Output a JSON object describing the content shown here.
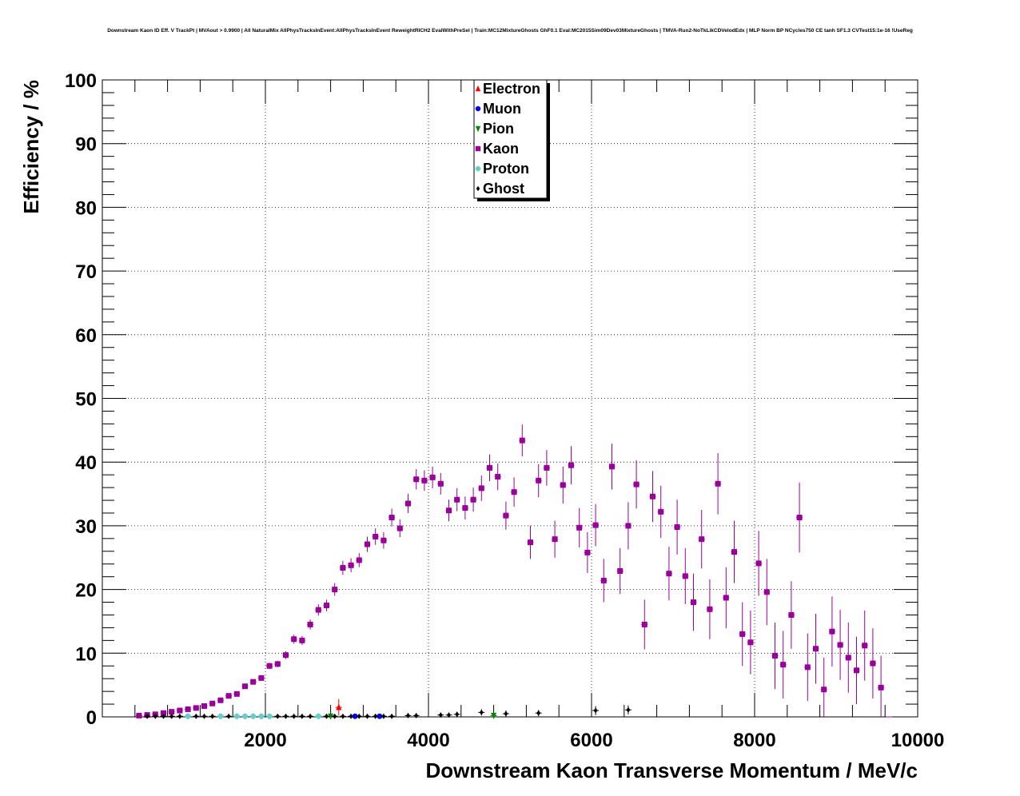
{
  "chart_data": {
    "type": "scatter",
    "title": "Downstream Kaon ID Eff. V TrackPt | MVAout > 0.9900 | All NaturalMix AllPhysTracksInEvent:AllPhysTracksInEvent ReweightRICH2 EvalWithPreSel | Train:MC12MixtureGhosts GhF0.1 Eval:MC2015Sim09Dev03MixtureGhosts | TMVA-Run2-NoTkLikCDVelodEdx | MLP Norm BP NCycles750 CE tanh SF1.3 CVTest15:1e-16 !UseReg",
    "xlabel": "Downstream Kaon Transverse Momentum / MeV/c",
    "ylabel": "Efficiency / %",
    "xlim": [
      0,
      10000
    ],
    "ylim": [
      0,
      100
    ],
    "xticks": [
      "2000",
      "4000",
      "6000",
      "8000",
      "10000"
    ],
    "yticks": [
      "0",
      "10",
      "20",
      "30",
      "40",
      "50",
      "60",
      "70",
      "80",
      "90",
      "100"
    ],
    "grid": true,
    "legend_position": "top-center",
    "series": [
      {
        "name": "Electron",
        "color": "#ff0000",
        "marker": "triangle-up",
        "x": [
          2900
        ],
        "y": [
          1.5
        ],
        "yerr": [
          1.3
        ]
      },
      {
        "name": "Muon",
        "color": "#0000ff",
        "marker": "circle",
        "x": [
          3100,
          3400
        ],
        "y": [
          0.1,
          0.1
        ],
        "yerr": [
          0.1,
          0.1
        ]
      },
      {
        "name": "Pion",
        "color": "#008800",
        "marker": "triangle-down",
        "x": [
          2800,
          4800
        ],
        "y": [
          0.1,
          0.2
        ],
        "yerr": [
          0.2,
          0.3
        ]
      },
      {
        "name": "Kaon",
        "color": "#990099",
        "marker": "square",
        "x": [
          450,
          550,
          650,
          750,
          850,
          950,
          1050,
          1150,
          1250,
          1350,
          1450,
          1550,
          1650,
          1750,
          1850,
          1950,
          2050,
          2150,
          2250,
          2350,
          2450,
          2550,
          2650,
          2750,
          2850,
          2950,
          3050,
          3150,
          3250,
          3350,
          3450,
          3550,
          3650,
          3750,
          3850,
          3950,
          4050,
          4150,
          4250,
          4350,
          4450,
          4550,
          4650,
          4750,
          4850,
          4950,
          5050,
          5150,
          5250,
          5350,
          5450,
          5550,
          5650,
          5750,
          5850,
          5950,
          6050,
          6150,
          6250,
          6350,
          6450,
          6550,
          6650,
          6750,
          6850,
          6950,
          7050,
          7150,
          7250,
          7350,
          7450,
          7550,
          7650,
          7750,
          7850,
          7950,
          8050,
          8150,
          8250,
          8350,
          8450,
          8550,
          8650,
          8750,
          8850,
          8950,
          9050,
          9150,
          9250,
          9350,
          9450,
          9550,
          9650
        ],
        "y": [
          0.2,
          0.3,
          0.4,
          0.6,
          0.8,
          1.0,
          1.2,
          1.4,
          1.7,
          2.1,
          2.6,
          3.3,
          3.6,
          4.8,
          5.5,
          6.1,
          8.0,
          8.3,
          9.7,
          12.2,
          12.0,
          14.5,
          16.8,
          17.5,
          20.0,
          23.4,
          23.8,
          24.6,
          27.1,
          28.3,
          27.7,
          31.3,
          29.6,
          33.5,
          37.3,
          37.1,
          37.6,
          36.6,
          32.4,
          34.1,
          32.8,
          34.1,
          35.9,
          39.1,
          37.7,
          31.6,
          35.3,
          43.4,
          27.4,
          37.1,
          39.1,
          27.9,
          36.4,
          39.5,
          29.7,
          25.8,
          30.1,
          21.4,
          39.3,
          22.9,
          30.0,
          36.5,
          14.5,
          34.6,
          32.2,
          22.5,
          29.8,
          22.1,
          18.0,
          27.9,
          16.9,
          36.6,
          18.7,
          25.9,
          13.0,
          11.7,
          24.1,
          19.6,
          9.6,
          8.2,
          16.0,
          31.3,
          7.8,
          10.7,
          4.3,
          13.4,
          11.3,
          9.3,
          7.3,
          11.2,
          8.4,
          4.6,
          0
        ],
        "yerr": [
          0.1,
          0.1,
          0.1,
          0.1,
          0.1,
          0.1,
          0.1,
          0.2,
          0.2,
          0.2,
          0.2,
          0.3,
          0.3,
          0.4,
          0.4,
          0.4,
          0.5,
          0.5,
          0.6,
          0.7,
          0.7,
          0.8,
          0.9,
          0.9,
          1.0,
          1.1,
          1.1,
          1.1,
          1.2,
          1.3,
          1.3,
          1.4,
          1.4,
          1.5,
          1.6,
          1.6,
          1.7,
          1.7,
          1.7,
          1.8,
          1.8,
          1.9,
          2.0,
          2.1,
          2.1,
          2.2,
          2.3,
          2.5,
          2.6,
          2.6,
          2.8,
          2.9,
          2.9,
          3.0,
          3.1,
          3.2,
          3.3,
          3.4,
          3.6,
          3.6,
          3.7,
          3.8,
          3.9,
          4.0,
          4.1,
          4.2,
          4.3,
          4.4,
          4.5,
          4.6,
          4.7,
          4.8,
          4.8,
          4.9,
          5.0,
          5.0,
          5.1,
          5.2,
          5.2,
          5.3,
          5.3,
          5.5,
          5.3,
          5.5,
          5.0,
          5.5,
          5.5,
          5.5,
          5.3,
          5.5,
          5.5,
          5.0,
          0
        ]
      },
      {
        "name": "Proton",
        "color": "#66cccc",
        "marker": "cross",
        "x": [
          1050,
          1450,
          1650,
          1750,
          1850,
          1950,
          2050,
          2650
        ],
        "y": [
          0.1,
          0.1,
          0.1,
          0.1,
          0.1,
          0.1,
          0.1,
          0.1
        ],
        "yerr": [
          0.1,
          0.1,
          0.1,
          0.1,
          0.1,
          0.1,
          0.1,
          0.1
        ]
      },
      {
        "name": "Ghost",
        "color": "#000000",
        "marker": "diamond",
        "x": [
          550,
          650,
          750,
          850,
          950,
          1150,
          1250,
          1350,
          1550,
          2150,
          2250,
          2350,
          2450,
          2550,
          2750,
          2850,
          2950,
          3050,
          3150,
          3250,
          3350,
          3450,
          3550,
          3750,
          3850,
          4150,
          4250,
          4350,
          4650,
          4950,
          5350,
          6050,
          6450
        ],
        "y": [
          0.1,
          0.1,
          0.1,
          0.1,
          0.1,
          0.1,
          0.1,
          0.1,
          0.1,
          0.1,
          0.1,
          0.1,
          0.1,
          0.1,
          0.1,
          0.1,
          0.1,
          0.1,
          0.1,
          0.1,
          0.1,
          0.1,
          0.1,
          0.2,
          0.2,
          0.3,
          0.3,
          0.4,
          0.7,
          0.5,
          0.6,
          1.0,
          1.1
        ],
        "yerr": [
          0.1,
          0.1,
          0.1,
          0.1,
          0.1,
          0.1,
          0.1,
          0.1,
          0.1,
          0.1,
          0.1,
          0.1,
          0.1,
          0.1,
          0.1,
          0.1,
          0.1,
          0.1,
          0.1,
          0.1,
          0.1,
          0.1,
          0.1,
          0.2,
          0.2,
          0.3,
          0.3,
          0.4,
          0.5,
          0.5,
          0.5,
          0.7,
          0.7
        ]
      }
    ]
  }
}
